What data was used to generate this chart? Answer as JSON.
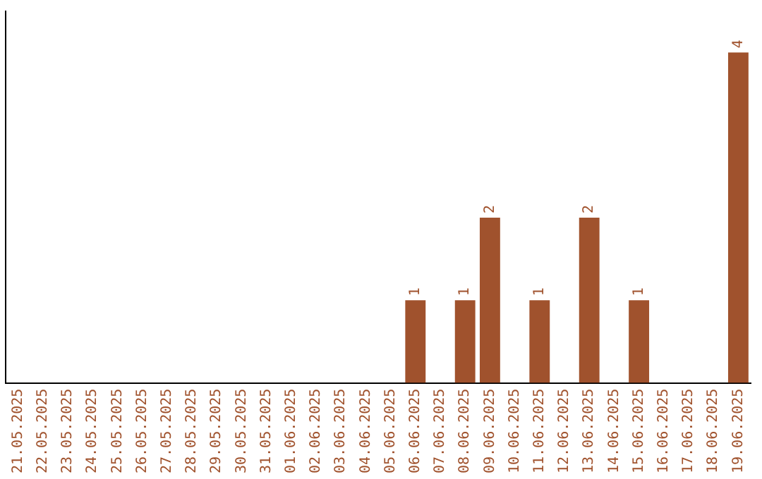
{
  "chart_data": {
    "type": "bar",
    "categories": [
      "21.05.2025",
      "22.05.2025",
      "23.05.2025",
      "24.05.2025",
      "25.05.2025",
      "26.05.2025",
      "27.05.2025",
      "28.05.2025",
      "29.05.2025",
      "30.05.2025",
      "31.05.2025",
      "01.06.2025",
      "02.06.2025",
      "03.06.2025",
      "04.06.2025",
      "05.06.2025",
      "06.06.2025",
      "07.06.2025",
      "08.06.2025",
      "09.06.2025",
      "10.06.2025",
      "11.06.2025",
      "12.06.2025",
      "13.06.2025",
      "14.06.2025",
      "15.06.2025",
      "16.06.2025",
      "17.06.2025",
      "18.06.2025",
      "19.06.2025"
    ],
    "values": [
      null,
      null,
      null,
      null,
      null,
      null,
      null,
      null,
      null,
      null,
      null,
      null,
      null,
      null,
      null,
      null,
      1,
      null,
      1,
      2,
      null,
      1,
      null,
      2,
      null,
      1,
      null,
      null,
      null,
      4
    ],
    "data_labels": true,
    "color": "#a0522d",
    "grid": false,
    "legend": false
  }
}
